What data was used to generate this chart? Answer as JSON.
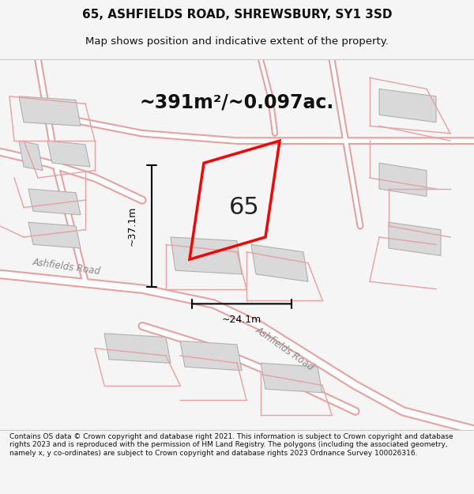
{
  "title_line1": "65, ASHFIELDS ROAD, SHREWSBURY, SY1 3SD",
  "title_line2": "Map shows position and indicative extent of the property.",
  "area_text": "~391m²/~0.097ac.",
  "label_65": "65",
  "dim_vertical": "~37.1m",
  "dim_horizontal": "~24.1m",
  "road_label1": "Ashfields Road",
  "road_label2": "Ashfields Road",
  "footer_text": "Contains OS data © Crown copyright and database right 2021. This information is subject to Crown copyright and database rights 2023 and is reproduced with the permission of HM Land Registry. The polygons (including the associated geometry, namely x, y co-ordinates) are subject to Crown copyright and database rights 2023 Ordnance Survey 100026316.",
  "background_color": "#f5f5f5",
  "map_background": "#f8f8f8",
  "road_color": "#ffffff",
  "building_color": "#d9d9d9",
  "plot_border_color": "#ff0000",
  "dim_line_color": "#000000",
  "road_outline_color": "#e8a0a0",
  "fig_width": 6.0,
  "fig_height": 6.25
}
